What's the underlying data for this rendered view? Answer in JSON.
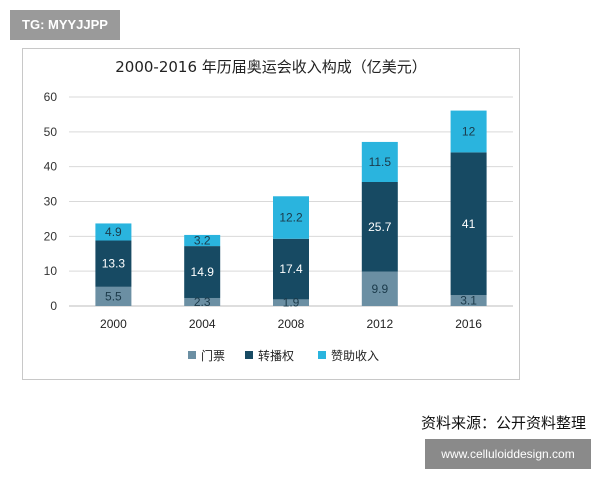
{
  "watermark_top": "TG: MYYJJPP",
  "watermark_bottom": "www.celluloiddesign.com",
  "source": "资料来源：公开资料整理",
  "colors": {
    "ticket": "#6b8fa3",
    "broadcast": "#174a63",
    "sponsor": "#2ab4de",
    "grid": "#d9d9d9",
    "axis": "#bdbdbd"
  },
  "chart_data": {
    "type": "bar",
    "stacked": true,
    "title": "2000-2016 年历届奥运会收入构成（亿美元）",
    "categories": [
      "2000",
      "2004",
      "2008",
      "2012",
      "2016"
    ],
    "series": [
      {
        "name": "门票",
        "values": [
          5.5,
          2.3,
          1.9,
          9.9,
          3.1
        ],
        "color": "#6b8fa3"
      },
      {
        "name": "转播权",
        "values": [
          13.3,
          14.9,
          17.4,
          25.7,
          41
        ],
        "color": "#174a63"
      },
      {
        "name": "赞助收入",
        "values": [
          4.9,
          3.2,
          12.2,
          11.5,
          12
        ],
        "color": "#2ab4de"
      }
    ],
    "ylim": [
      0,
      60
    ],
    "yticks": [
      0,
      10,
      20,
      30,
      40,
      50,
      60
    ],
    "grid": true,
    "legend": "bottom"
  }
}
